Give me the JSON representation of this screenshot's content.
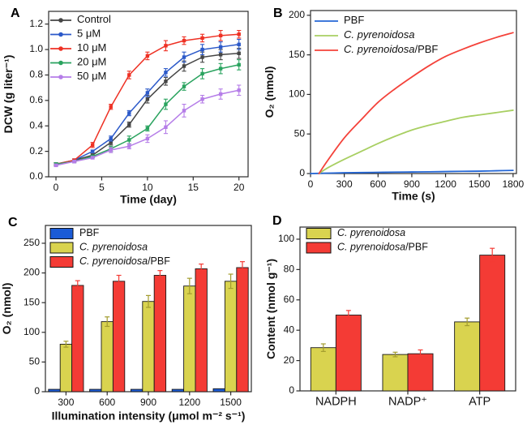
{
  "figure": {
    "background": "#ffffff",
    "panel_letters": [
      "A",
      "B",
      "C",
      "D"
    ],
    "axis_color": "#2b2b2b",
    "text_color": "#111111"
  },
  "chart_data": [
    {
      "panel": "A",
      "type": "line",
      "title": "",
      "xlabel": "Time (day)",
      "ylabel": "DCW (g liter⁻¹)",
      "xlim": [
        -0.8,
        21
      ],
      "ylim": [
        0,
        1.3
      ],
      "xticks": [
        0,
        5,
        10,
        15,
        20
      ],
      "xtick_labels": [
        "0",
        "5",
        "10",
        "15",
        "20"
      ],
      "yticks": [
        0,
        0.2,
        0.4,
        0.6,
        0.8,
        1.0,
        1.2
      ],
      "ytick_labels": [
        "0.0",
        "0.2",
        "0.4",
        "0.6",
        "0.8",
        "1.0",
        "1.2"
      ],
      "grid": false,
      "legend": {
        "position": "top-left",
        "style": "line",
        "marker": true
      },
      "x": [
        0,
        2,
        4,
        6,
        8,
        10,
        12,
        14,
        16,
        18,
        20
      ],
      "series": [
        {
          "name": "Control",
          "color": "#454545",
          "values": [
            0.1,
            0.13,
            0.17,
            0.27,
            0.41,
            0.61,
            0.75,
            0.87,
            0.94,
            0.96,
            0.97
          ],
          "errors": [
            0.01,
            0.01,
            0.01,
            0.02,
            0.02,
            0.03,
            0.03,
            0.04,
            0.04,
            0.04,
            0.04
          ]
        },
        {
          "name": "5 μM",
          "color": "#2b59c9",
          "values": [
            0.1,
            0.13,
            0.2,
            0.3,
            0.5,
            0.66,
            0.82,
            0.94,
            1.0,
            1.02,
            1.04
          ],
          "errors": [
            0.01,
            0.01,
            0.01,
            0.02,
            0.02,
            0.03,
            0.03,
            0.04,
            0.04,
            0.04,
            0.04
          ]
        },
        {
          "name": "10 μM",
          "color": "#ee3124",
          "values": [
            0.1,
            0.13,
            0.25,
            0.55,
            0.8,
            0.95,
            1.03,
            1.07,
            1.09,
            1.11,
            1.12
          ],
          "errors": [
            0.01,
            0.01,
            0.02,
            0.02,
            0.03,
            0.03,
            0.04,
            0.03,
            0.03,
            0.04,
            0.03
          ]
        },
        {
          "name": "20 μM",
          "color": "#2aa35f",
          "values": [
            0.1,
            0.12,
            0.16,
            0.22,
            0.29,
            0.38,
            0.57,
            0.71,
            0.81,
            0.85,
            0.88
          ],
          "errors": [
            0.01,
            0.01,
            0.01,
            0.02,
            0.03,
            0.02,
            0.04,
            0.03,
            0.04,
            0.04,
            0.04
          ]
        },
        {
          "name": "50 μM",
          "color": "#b57de8",
          "values": [
            0.09,
            0.12,
            0.15,
            0.21,
            0.24,
            0.3,
            0.39,
            0.52,
            0.61,
            0.65,
            0.68
          ],
          "errors": [
            0.01,
            0.01,
            0.01,
            0.02,
            0.02,
            0.03,
            0.05,
            0.05,
            0.03,
            0.04,
            0.04
          ]
        }
      ]
    },
    {
      "panel": "B",
      "type": "line",
      "smooth": true,
      "title": "",
      "xlabel": "Time (s)",
      "ylabel": "O₂ (nmol)",
      "xlim": [
        0,
        1830
      ],
      "ylim": [
        0,
        206
      ],
      "xticks": [
        0,
        300,
        600,
        900,
        1200,
        1500,
        1800
      ],
      "xtick_labels": [
        "0",
        "300",
        "600",
        "900",
        "1200",
        "1500",
        "1800"
      ],
      "yticks": [
        0,
        50,
        100,
        150,
        200
      ],
      "ytick_labels": [
        "0",
        "50",
        "100",
        "150",
        "200"
      ],
      "grid": false,
      "legend": {
        "position": "top-left",
        "style": "line",
        "marker": false
      },
      "series": [
        {
          "name": "PBF",
          "color": "#2467d6",
          "name_parts": [
            {
              "t": "PBF",
              "i": false
            }
          ],
          "x": [
            0,
            150,
            300,
            450,
            600,
            750,
            900,
            1050,
            1200,
            1350,
            1500,
            1650,
            1800
          ],
          "values": [
            0,
            0.5,
            1,
            1.2,
            1.5,
            1.8,
            2,
            2.2,
            2.5,
            2.8,
            3,
            3.5,
            4
          ]
        },
        {
          "name": "C. pyrenoidosa",
          "color": "#a8cf62",
          "name_parts": [
            {
              "t": "C. pyrenoidosa",
              "i": true
            }
          ],
          "x": [
            75,
            150,
            300,
            450,
            600,
            750,
            900,
            1050,
            1200,
            1350,
            1500,
            1650,
            1800
          ],
          "values": [
            0,
            7,
            18,
            28,
            38,
            47,
            55,
            61,
            66,
            71,
            74,
            77,
            80
          ]
        },
        {
          "name": "C. pyrenoidosa/PBF",
          "color": "#f4423a",
          "name_parts": [
            {
              "t": "C. pyrenoidosa",
              "i": true
            },
            {
              "t": "/PBF",
              "i": false
            }
          ],
          "x": [
            75,
            150,
            300,
            450,
            600,
            750,
            900,
            1050,
            1200,
            1350,
            1500,
            1650,
            1800
          ],
          "values": [
            0,
            16,
            45,
            68,
            90,
            107,
            122,
            136,
            148,
            157,
            165,
            172,
            178
          ]
        }
      ]
    },
    {
      "panel": "C",
      "type": "bar",
      "title": "",
      "xlabel": "Illumination intensity (μmol m⁻² s⁻¹)",
      "ylabel": "O₂ (nmol)",
      "ylim": [
        0,
        280
      ],
      "yticks": [
        0,
        50,
        100,
        150,
        200,
        250
      ],
      "ytick_labels": [
        "0",
        "50",
        "100",
        "150",
        "200",
        "250"
      ],
      "categories": [
        "300",
        "600",
        "900",
        "1200",
        "1500"
      ],
      "grid": false,
      "legend": {
        "position": "top-left",
        "style": "swatch"
      },
      "series": [
        {
          "name": "PBF",
          "color": "#1b5bd6",
          "name_parts": [
            {
              "t": "PBF",
              "i": false
            }
          ],
          "values": [
            4,
            4,
            4,
            4,
            5
          ],
          "errors": [
            0,
            0,
            0,
            0,
            0
          ]
        },
        {
          "name": "C. pyrenoidosa",
          "color": "#d9d34f",
          "error_color": "#a39c2e",
          "name_parts": [
            {
              "t": "C. pyrenoidosa",
              "i": true
            }
          ],
          "values": [
            80,
            118,
            152,
            178,
            186
          ],
          "errors": [
            5,
            8,
            10,
            13,
            12
          ]
        },
        {
          "name": "C. pyrenoidosa/PBF",
          "color": "#f43b35",
          "name_parts": [
            {
              "t": "C. pyrenoidosa",
              "i": true
            },
            {
              "t": "/PBF",
              "i": false
            }
          ],
          "values": [
            179,
            186,
            196,
            207,
            209
          ],
          "errors": [
            8,
            10,
            8,
            8,
            10
          ]
        }
      ]
    },
    {
      "panel": "D",
      "type": "bar",
      "title": "",
      "xlabel": "",
      "ylabel": "Content (nmol g⁻¹)",
      "ylim": [
        0,
        108
      ],
      "yticks": [
        0,
        20,
        40,
        60,
        80,
        100
      ],
      "ytick_labels": [
        "0",
        "20",
        "40",
        "60",
        "80",
        "100"
      ],
      "categories": [
        "NADPH",
        "NADP⁺",
        "ATP"
      ],
      "grid": false,
      "legend": {
        "position": "top-left",
        "style": "swatch"
      },
      "series": [
        {
          "name": "C. pyrenoidosa",
          "color": "#d9d34f",
          "error_color": "#a39c2e",
          "name_parts": [
            {
              "t": "C. pyrenoidosa",
              "i": true
            }
          ],
          "values": [
            28.5,
            24,
            45.5
          ],
          "errors": [
            2.5,
            1.5,
            2.5
          ]
        },
        {
          "name": "C. pyrenoidosa/PBF",
          "color": "#f43b35",
          "name_parts": [
            {
              "t": "C. pyrenoidosa",
              "i": true
            },
            {
              "t": "/PBF",
              "i": false
            }
          ],
          "values": [
            50,
            24.5,
            89.5
          ],
          "errors": [
            3,
            2.5,
            4.5
          ]
        }
      ]
    }
  ]
}
